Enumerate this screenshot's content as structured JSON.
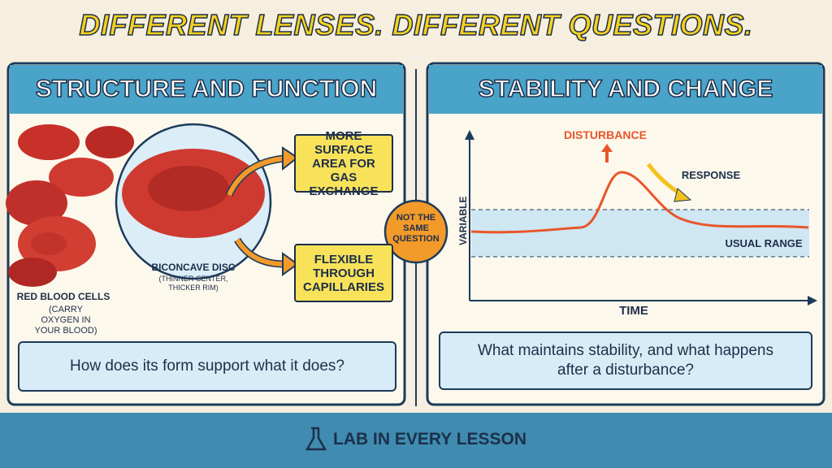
{
  "header": {
    "title": "DIFFERENT LENSES. DIFFERENT QUESTIONS."
  },
  "left_panel": {
    "title": "STRUCTURE AND FUNCTION",
    "cells_label": "RED BLOOD CELLS",
    "cells_note": "(CARRY OXYGEN IN YOUR BLOOD)",
    "disc_label": "BICONCAVE DISC",
    "disc_note": "(THINNER CENTER, THICKER RIM)",
    "callouts": [
      "MORE SURFACE AREA FOR GAS EXCHANGE",
      "FLEXIBLE THROUGH CAPILLARIES"
    ],
    "question": "How does its form support what it does?"
  },
  "center_badge": {
    "text": "NOT THE SAME QUESTION"
  },
  "right_panel": {
    "title": "STABILITY AND CHANGE",
    "graph": {
      "y_label": "VARIABLE",
      "x_label": "TIME",
      "peak_label": "DISTURBANCE",
      "response_label": "RESPONSE",
      "range_label": "USUAL RANGE"
    },
    "question": "What maintains stability, and what happens after a disturbance?"
  },
  "footer": {
    "brand": "LAB IN EVERY LESSON"
  }
}
